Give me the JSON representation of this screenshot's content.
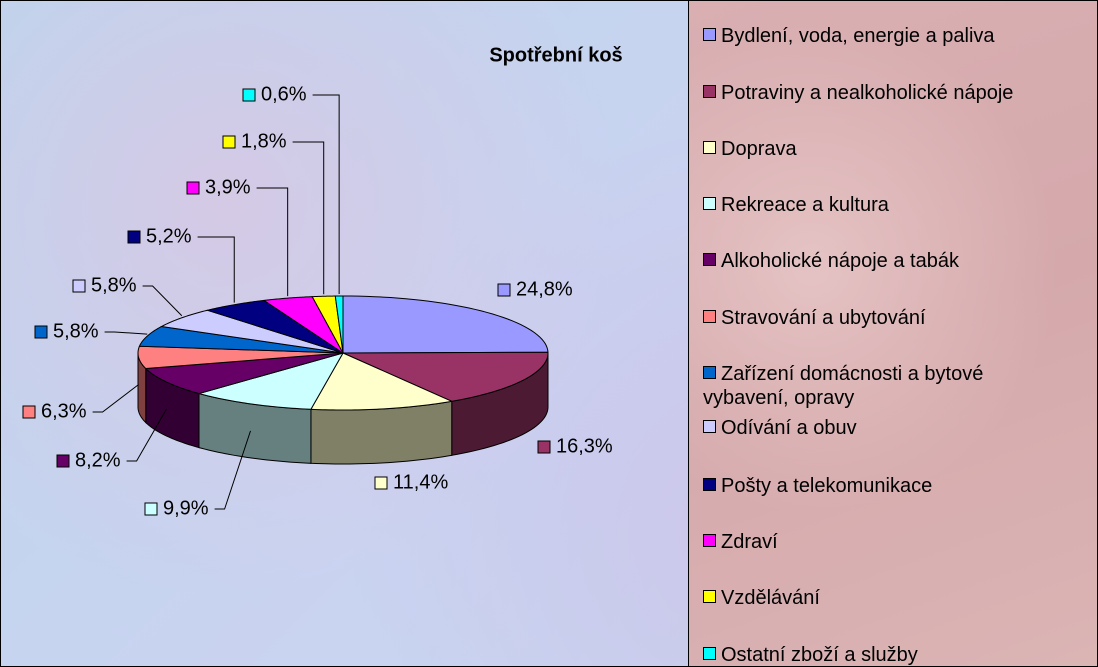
{
  "chart_data": {
    "type": "pie3d",
    "title": "Spotřební koš",
    "categories": [
      "Bydlení, voda, energie a paliva",
      "Potraviny a nealkoholické nápoje",
      "Doprava",
      "Rekreace a kultura",
      "Alkoholické nápoje a tabák",
      "Stravování a ubytování",
      "Zařízení domácnosti a bytové vybavení, opravy",
      "Odívání a obuv",
      "Pošty a telekomunikace",
      "Zdraví",
      "Vzdělávání",
      "Ostatní zboží a služby"
    ],
    "values": [
      24.8,
      16.3,
      11.4,
      9.9,
      8.2,
      6.3,
      5.8,
      5.8,
      5.2,
      3.9,
      1.8,
      0.6
    ],
    "value_labels": [
      "24,8%",
      "16,3%",
      "11,4%",
      "9,9%",
      "8,2%",
      "6,3%",
      "5,8%",
      "5,8%",
      "5,2%",
      "3,9%",
      "1,8%",
      "0,6%"
    ],
    "colors": [
      "#9999ff",
      "#993366",
      "#ffffcc",
      "#ccffff",
      "#660066",
      "#ff8080",
      "#0066cc",
      "#ccccff",
      "#000080",
      "#ff00ff",
      "#ffff00",
      "#00ffff"
    ],
    "legend": "right"
  }
}
